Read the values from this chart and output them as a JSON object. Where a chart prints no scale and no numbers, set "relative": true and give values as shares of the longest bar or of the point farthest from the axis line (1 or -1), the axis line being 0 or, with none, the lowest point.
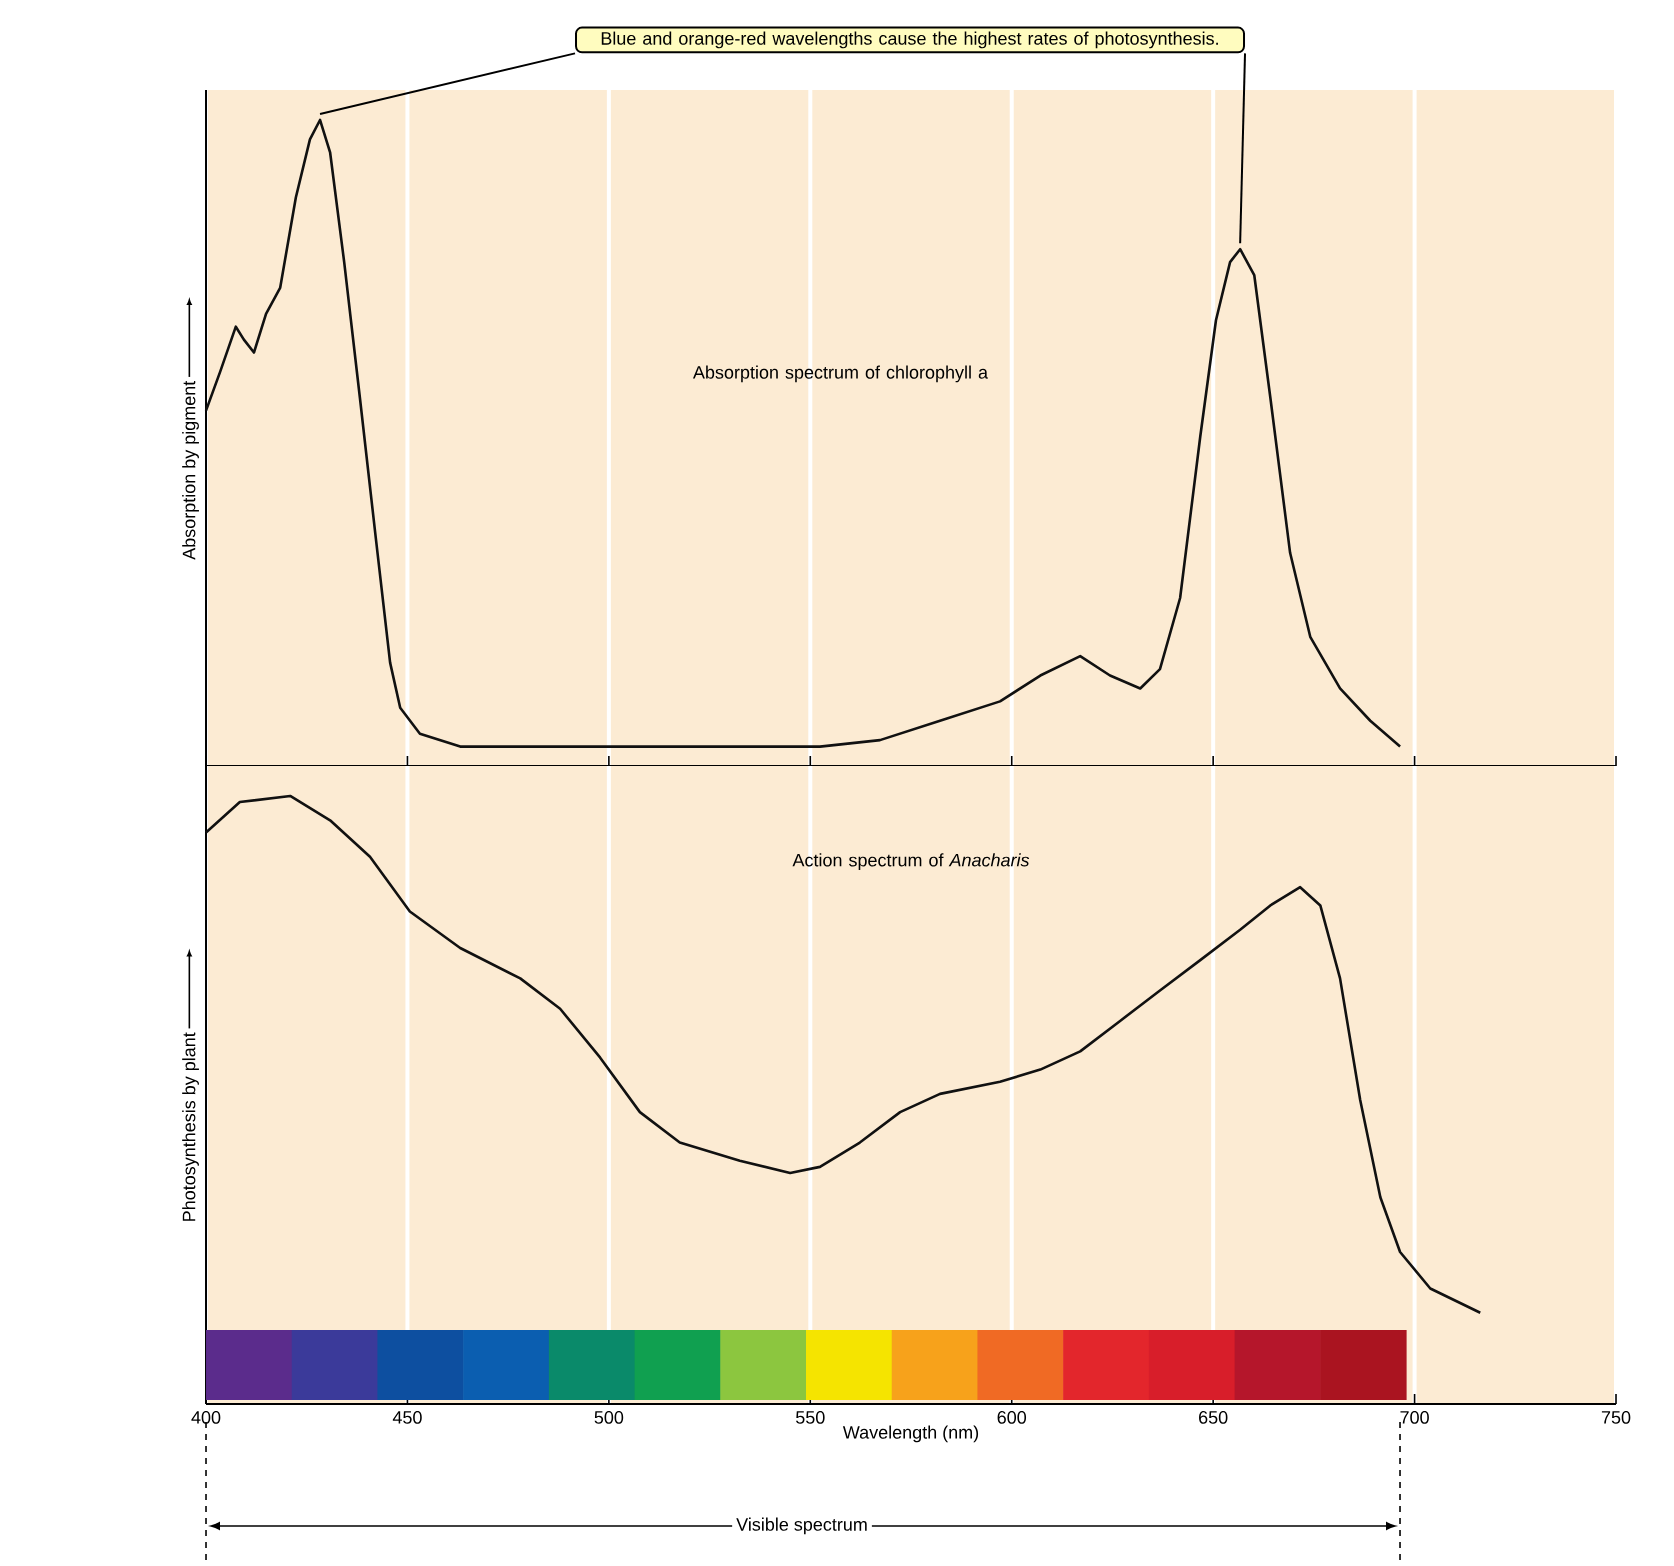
{
  "chart_data": [
    {
      "type": "line",
      "relative": true,
      "xlim": [
        400,
        750
      ],
      "xticks": [
        400,
        450,
        500,
        550,
        600,
        650,
        700,
        750
      ],
      "grid": "x",
      "tick_labels": false,
      "ylabel": "Absorption by pigment",
      "annotations": [
        "Blue and orange-red wavelengths cause the highest rates of photosynthesis.",
        "Absorption spectrum of chlorophyll a"
      ],
      "series": [
        {
          "color": "#111111",
          "x": [
            400,
            403.5,
            407.4,
            409.4,
            411.9,
            414.9,
            418.4,
            422.3,
            425.8,
            428.3,
            430.8,
            434.3,
            438.2,
            442.2,
            445.7,
            448.2,
            453.1,
            463.1,
            478,
            492.9,
            507.7,
            522.6,
            537.5,
            552.4,
            567.3,
            582.2,
            597.1,
            607.1,
            617,
            624.4,
            631.9,
            636.8,
            641.8,
            646.8,
            650.7,
            654.2,
            656.7,
            660.2,
            664.2,
            669.1,
            674.1,
            681.5,
            689,
            696.4
          ],
          "values": [
            0.55,
            0.61,
            0.68,
            0.66,
            0.64,
            0.7,
            0.74,
            0.88,
            0.97,
            1.0,
            0.95,
            0.78,
            0.57,
            0.35,
            0.16,
            0.09,
            0.05,
            0.03,
            0.03,
            0.03,
            0.03,
            0.03,
            0.03,
            0.03,
            0.04,
            0.07,
            0.1,
            0.14,
            0.17,
            0.14,
            0.12,
            0.15,
            0.26,
            0.51,
            0.69,
            0.78,
            0.8,
            0.76,
            0.57,
            0.33,
            0.2,
            0.12,
            0.07,
            0.03
          ]
        }
      ]
    },
    {
      "type": "line",
      "relative": true,
      "xlim": [
        400,
        750
      ],
      "xticks": [
        400,
        450,
        500,
        550,
        600,
        650,
        700,
        750
      ],
      "grid": "x",
      "tick_labels": "x",
      "ylabel": "Photosynthesis by plant",
      "xlabel": "Wavelength (nm)",
      "annotations": [
        "Action spectrum of *Anacharis*",
        "Visible spectrum"
      ],
      "series": [
        {
          "color": "#111111",
          "x": [
            400,
            408.4,
            420.9,
            430.8,
            440.7,
            450.6,
            463.1,
            478,
            487.9,
            497.8,
            507.7,
            517.6,
            532.5,
            545,
            552.4,
            562.3,
            572.3,
            582.2,
            597.1,
            607.1,
            617,
            626.9,
            636.8,
            646.8,
            656.7,
            664.2,
            671.6,
            676.6,
            681.5,
            686.5,
            691.5,
            696.4,
            703.9,
            716.3
          ],
          "values": [
            0.94,
            0.99,
            1.0,
            0.96,
            0.9,
            0.81,
            0.75,
            0.7,
            0.65,
            0.57,
            0.48,
            0.43,
            0.4,
            0.38,
            0.39,
            0.43,
            0.48,
            0.51,
            0.53,
            0.55,
            0.58,
            0.63,
            0.68,
            0.73,
            0.78,
            0.82,
            0.85,
            0.82,
            0.7,
            0.5,
            0.34,
            0.25,
            0.19,
            0.15
          ]
        }
      ]
    }
  ]
}
